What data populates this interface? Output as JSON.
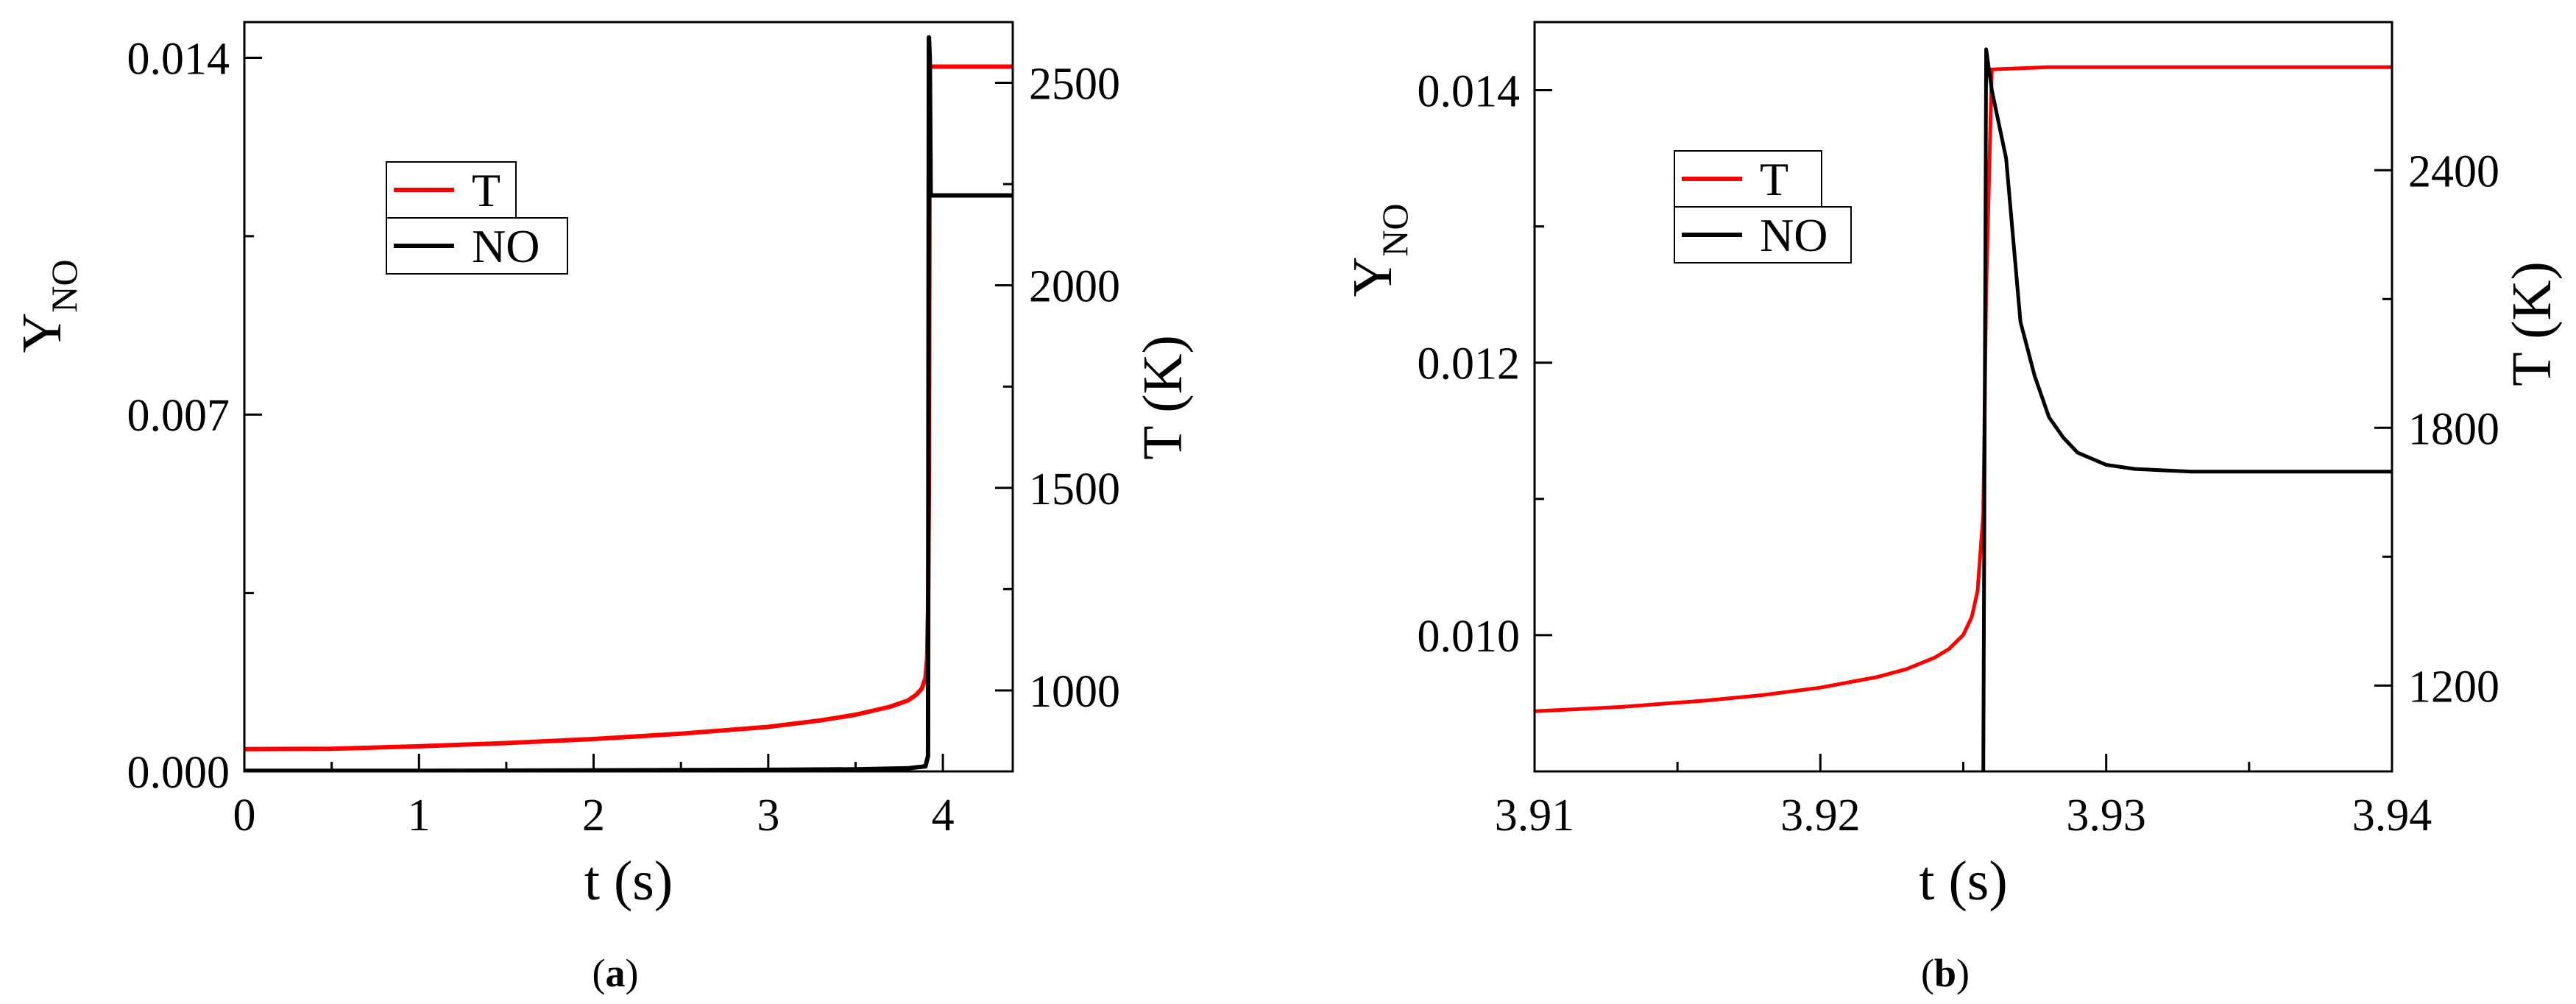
{
  "colors": {
    "T": "#ff0000",
    "NO": "#000000"
  },
  "chart_data": [
    {
      "type": "line",
      "panel": "a",
      "caption": {
        "open": "(",
        "letter": "a",
        "close": ")"
      },
      "xlabel": "t (s)",
      "ylabel_left": {
        "main": "Y",
        "sub": "NO"
      },
      "ylabel_right": "T (K)",
      "xlim": [
        0,
        4.4
      ],
      "ylim_left": [
        0,
        0.0147
      ],
      "ylim_right": [
        800,
        2650
      ],
      "xticks": [
        {
          "v": 0,
          "label": "0"
        },
        {
          "v": 1,
          "label": "1"
        },
        {
          "v": 2,
          "label": "2"
        },
        {
          "v": 3,
          "label": "3"
        },
        {
          "v": 4,
          "label": "4"
        }
      ],
      "xminor": [
        0.5,
        1.5,
        2.5,
        3.5
      ],
      "yticks_left": [
        {
          "v": 0,
          "label": "0.000"
        },
        {
          "v": 0.007,
          "label": "0.007"
        },
        {
          "v": 0.014,
          "label": "0.014"
        }
      ],
      "yminor_left": [
        0.0035,
        0.0105
      ],
      "yticks_right": [
        {
          "v": 1000,
          "label": "1000"
        },
        {
          "v": 1500,
          "label": "1500"
        },
        {
          "v": 2000,
          "label": "2000"
        },
        {
          "v": 2500,
          "label": "2500"
        }
      ],
      "yminor_right": [
        1250,
        1750,
        2250
      ],
      "legend": {
        "placement": "upper-left",
        "entries": [
          "T",
          "NO"
        ]
      },
      "series": [
        {
          "name": "T",
          "axis": "right",
          "color": "#ff0000",
          "x": [
            0,
            0.5,
            1.0,
            1.5,
            2.0,
            2.5,
            3.0,
            3.3,
            3.5,
            3.7,
            3.8,
            3.85,
            3.88,
            3.9,
            3.91,
            3.915,
            3.92,
            3.925,
            4.4
          ],
          "y": [
            855,
            856,
            862,
            870,
            880,
            893,
            910,
            926,
            940,
            960,
            975,
            990,
            1005,
            1030,
            1080,
            1200,
            1500,
            2540,
            2540
          ]
        },
        {
          "name": "NO",
          "axis": "left",
          "color": "#000000",
          "x": [
            0,
            1,
            2,
            3,
            3.5,
            3.8,
            3.9,
            3.915,
            3.92,
            3.925,
            3.93,
            4.4
          ],
          "y": [
            1e-05,
            1e-05,
            2e-05,
            3e-05,
            4e-05,
            6e-05,
            0.0001,
            0.0003,
            0.0144,
            0.014,
            0.0113,
            0.0113
          ]
        }
      ]
    },
    {
      "type": "line",
      "panel": "b",
      "caption": {
        "open": "(",
        "letter": "b",
        "close": ")"
      },
      "xlabel": "t (s)",
      "ylabel_left": {
        "main": "Y",
        "sub": "NO"
      },
      "ylabel_right": "T (K)",
      "xlim": [
        3.91,
        3.94
      ],
      "ylim_left": [
        0.009,
        0.0145
      ],
      "ylim_right": [
        1000,
        2745
      ],
      "xticks": [
        {
          "v": 3.91,
          "label": "3.91"
        },
        {
          "v": 3.92,
          "label": "3.92"
        },
        {
          "v": 3.93,
          "label": "3.93"
        },
        {
          "v": 3.94,
          "label": "3.94"
        }
      ],
      "xminor": [
        3.915,
        3.925,
        3.935
      ],
      "yticks_left": [
        {
          "v": 0.01,
          "label": "0.010"
        },
        {
          "v": 0.012,
          "label": "0.012"
        },
        {
          "v": 0.014,
          "label": "0.014"
        }
      ],
      "yminor_left": [
        0.011,
        0.013
      ],
      "yticks_right": [
        {
          "v": 1200,
          "label": "1200"
        },
        {
          "v": 1800,
          "label": "1800"
        },
        {
          "v": 2400,
          "label": "2400"
        }
      ],
      "yminor_right": [
        1500,
        2100
      ],
      "legend": {
        "placement": "upper-left",
        "entries": [
          "T",
          "NO"
        ]
      },
      "series": [
        {
          "name": "T",
          "axis": "right",
          "color": "#ff0000",
          "x": [
            3.91,
            3.913,
            3.916,
            3.918,
            3.92,
            3.922,
            3.923,
            3.924,
            3.9245,
            3.925,
            3.9253,
            3.9255,
            3.9257,
            3.9258,
            3.926,
            3.928,
            3.94
          ],
          "y": [
            1140,
            1150,
            1165,
            1178,
            1195,
            1220,
            1238,
            1265,
            1285,
            1318,
            1360,
            1420,
            1600,
            2120,
            2635,
            2640,
            2640
          ]
        },
        {
          "name": "NO",
          "axis": "left",
          "color": "#000000",
          "x": [
            3.9257,
            3.9258,
            3.926,
            3.9265,
            3.927,
            3.9275,
            3.928,
            3.9285,
            3.929,
            3.93,
            3.931,
            3.933,
            3.94
          ],
          "y": [
            0.009,
            0.0143,
            0.014,
            0.0135,
            0.0123,
            0.0119,
            0.0116,
            0.01145,
            0.01134,
            0.01125,
            0.01122,
            0.0112,
            0.0112
          ]
        }
      ]
    }
  ]
}
